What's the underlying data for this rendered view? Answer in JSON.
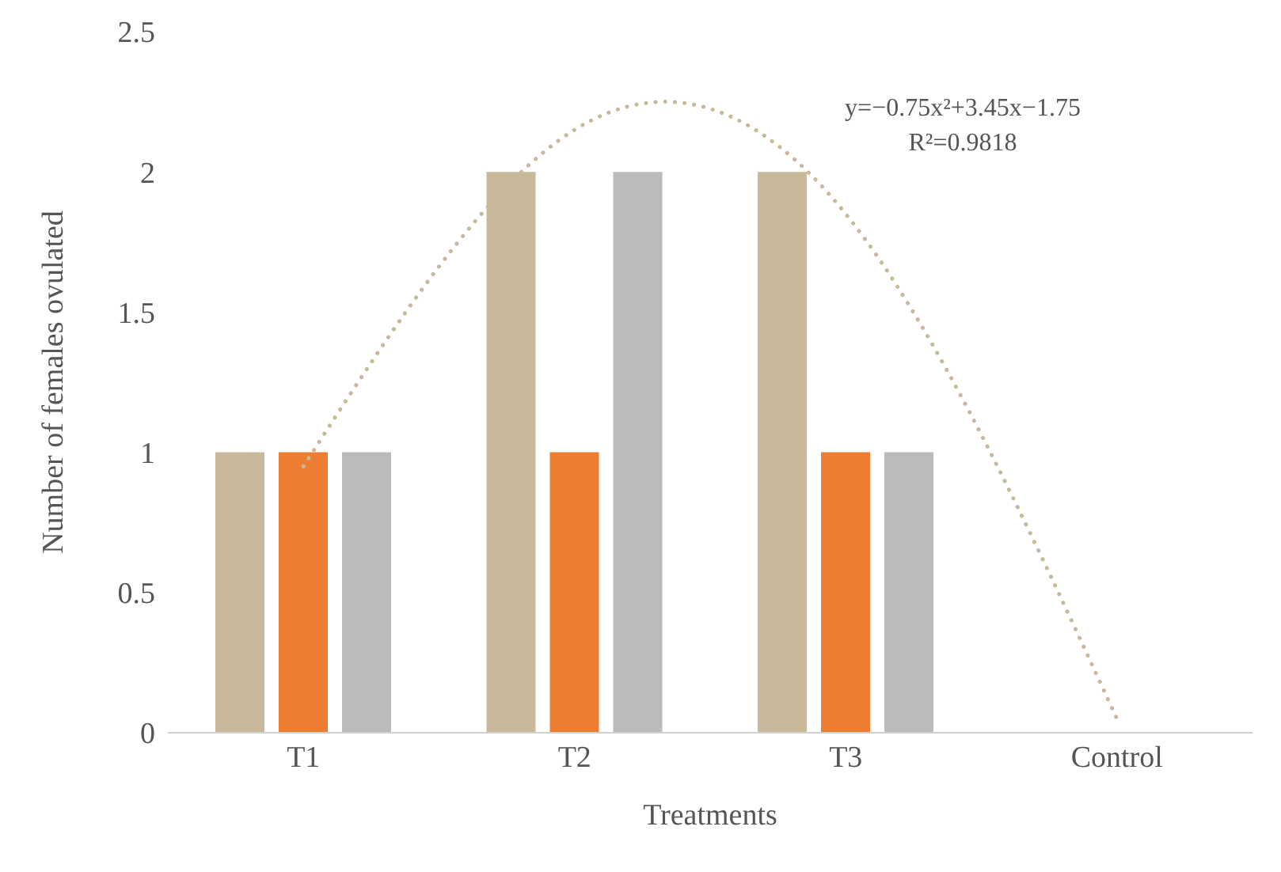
{
  "chart_data": {
    "type": "bar",
    "xlabel": "Treatments",
    "ylabel": "Number of females ovulated",
    "categories": [
      "T1",
      "T2",
      "T3",
      "Control"
    ],
    "series": [
      {
        "color": "#c9b99b",
        "values": [
          1,
          2,
          2,
          0
        ]
      },
      {
        "color": "#ed7d31",
        "values": [
          1,
          1,
          1,
          0
        ]
      },
      {
        "color": "#bbbbbb",
        "values": [
          1,
          2,
          1,
          0
        ]
      },
      {
        "type": "line",
        "color": "#c9b99b",
        "x": [
          "T1",
          "T2",
          "T3",
          "Control"
        ],
        "values": [
          0.95,
          2.15,
          1.85,
          0.05
        ],
        "line_style": "dotted",
        "marker": "none"
      }
    ],
    "ylim": [
      0,
      2.5
    ],
    "yticks": [
      0,
      0.5,
      1,
      1.5,
      2,
      2.5
    ],
    "annotations": [
      "y=−0.75x²+3.45x−1.75",
      "R²=0.9818"
    ]
  }
}
